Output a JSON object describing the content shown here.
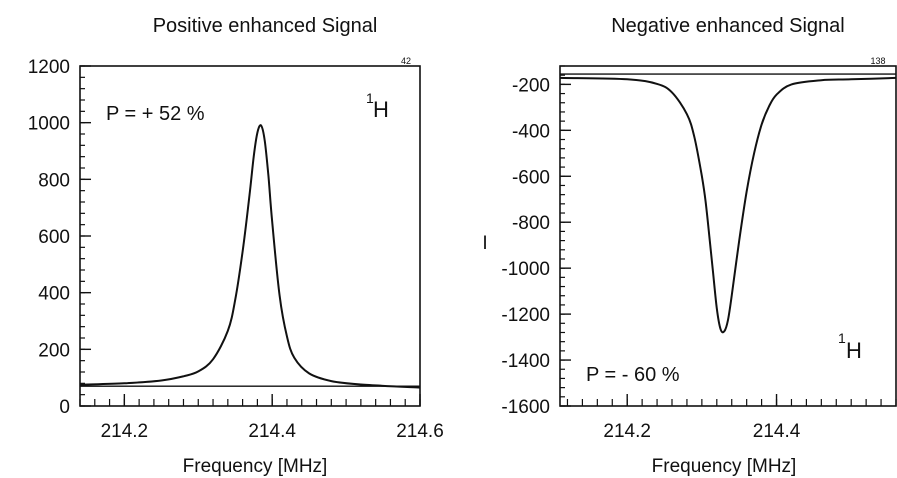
{
  "chart_data": [
    {
      "type": "line",
      "title": "Positive enhanced Signal",
      "xlabel": "Frequency [MHz]",
      "ylabel": "",
      "xlim": [
        214.14,
        214.6
      ],
      "ylim": [
        0,
        1200
      ],
      "xticks": [
        214.2,
        214.4,
        214.6
      ],
      "xtick_labels": [
        "214.2",
        "214.4",
        "214.6"
      ],
      "yticks": [
        0,
        200,
        400,
        600,
        800,
        1000,
        1200
      ],
      "ytick_labels": [
        "0",
        "200",
        "400",
        "600",
        "800",
        "1000",
        "1200"
      ],
      "x_minor_step": 0.02,
      "y_minor_step": 40,
      "corner_label": "42",
      "annotation": "P = + 52 %",
      "nucleus_mass": "1",
      "nucleus_symbol": "H",
      "grid": false,
      "reference_line": 70,
      "series": [
        {
          "x": [
            214.14,
            214.2,
            214.25,
            214.28,
            214.3,
            214.32,
            214.34,
            214.35,
            214.36,
            214.37,
            214.375,
            214.38,
            214.385,
            214.39,
            214.395,
            214.4,
            214.41,
            214.42,
            214.43,
            214.45,
            214.48,
            214.52,
            214.6
          ],
          "y": [
            75,
            80,
            90,
            105,
            122,
            165,
            265,
            375,
            545,
            760,
            880,
            965,
            990,
            935,
            810,
            650,
            390,
            245,
            170,
            115,
            88,
            76,
            65
          ]
        }
      ]
    },
    {
      "type": "line",
      "title": "Negative enhanced Signal",
      "xlabel": "Frequency [MHz]",
      "ylabel": "I",
      "xlim": [
        214.11,
        214.56
      ],
      "ylim": [
        -1600,
        -120
      ],
      "xticks": [
        214.2,
        214.4
      ],
      "xtick_labels": [
        "214.2",
        "214.4"
      ],
      "yticks": [
        -200,
        -400,
        -600,
        -800,
        -1000,
        -1200,
        -1400,
        -1600
      ],
      "ytick_labels": [
        "-200",
        "-400",
        "-600",
        "-800",
        "-1000",
        "-1200",
        "-1400",
        "-1600"
      ],
      "x_minor_step": 0.02,
      "y_minor_step": 40,
      "corner_label": "138",
      "annotation": "P = - 60 %",
      "nucleus_mass": "1",
      "nucleus_symbol": "H",
      "grid": false,
      "reference_line": -155,
      "series": [
        {
          "x": [
            214.11,
            214.2,
            214.24,
            214.26,
            214.28,
            214.29,
            214.3,
            214.305,
            214.31,
            214.315,
            214.32,
            214.325,
            214.33,
            214.335,
            214.34,
            214.35,
            214.36,
            214.37,
            214.38,
            214.39,
            214.4,
            214.42,
            214.46,
            214.5,
            214.56
          ],
          "y": [
            -172,
            -178,
            -198,
            -235,
            -330,
            -430,
            -600,
            -710,
            -860,
            -1020,
            -1175,
            -1265,
            -1275,
            -1225,
            -1120,
            -880,
            -665,
            -500,
            -375,
            -295,
            -245,
            -200,
            -182,
            -178,
            -172
          ]
        }
      ]
    }
  ]
}
